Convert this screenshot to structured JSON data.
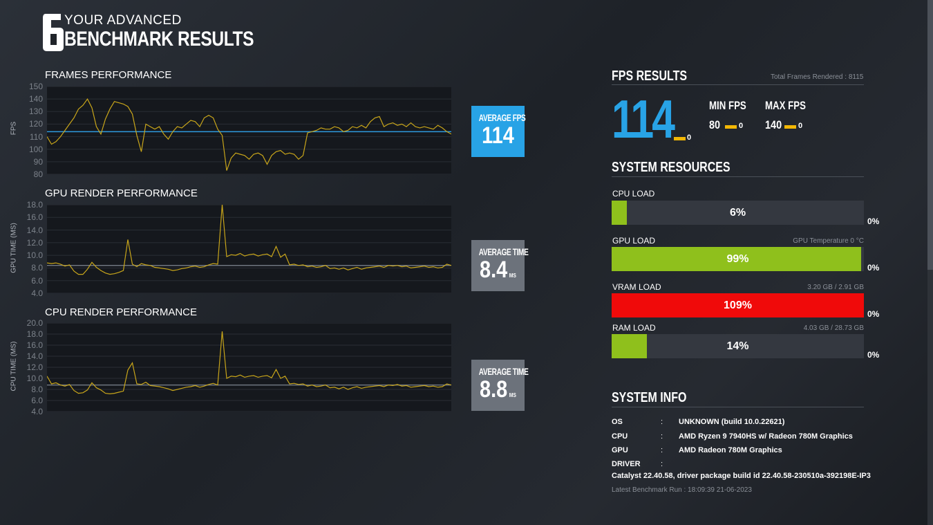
{
  "header": {
    "title_top": "YOUR ADVANCED",
    "title_bottom": "BENCHMARK RESULTS"
  },
  "charts": [
    {
      "title": "FRAMES PERFORMANCE",
      "ylabel": "FPS",
      "ticks": [
        "150",
        "140",
        "130",
        "120",
        "110",
        "100",
        "90",
        "80"
      ],
      "ylim": [
        80,
        150
      ],
      "average_label": "AVERAGE FPS",
      "average_value": "114",
      "average_unit": "",
      "average_line": 114,
      "values": [
        110,
        104,
        106,
        110,
        115,
        120,
        125,
        132,
        135,
        140,
        133,
        118,
        112,
        124,
        132,
        138,
        137,
        136,
        134,
        128,
        111,
        98,
        120,
        118,
        116,
        118,
        112,
        108,
        114,
        118,
        117,
        120,
        123,
        122,
        118,
        125,
        127,
        125,
        116,
        111,
        83,
        93,
        97,
        96,
        95,
        92,
        96,
        97,
        95,
        88,
        95,
        98,
        99,
        96,
        97,
        96,
        92,
        95,
        113,
        114,
        115,
        117,
        116,
        116,
        118,
        117,
        114,
        115,
        118,
        117,
        119,
        117,
        122,
        125,
        126,
        118,
        120,
        121,
        119,
        120,
        118,
        121,
        118,
        117,
        118,
        117,
        116,
        119,
        117,
        114,
        112
      ]
    },
    {
      "title": "GPU RENDER PERFORMANCE",
      "ylabel": "GPU TIME (MS)",
      "ticks": [
        "18.0",
        "16.0",
        "14.0",
        "12.0",
        "10.0",
        "8.0",
        "6.0",
        "4.0"
      ],
      "ylim": [
        4,
        18
      ],
      "average_label": "AVERAGE TIME",
      "average_value": "8.4",
      "average_unit": "MS",
      "average_line": 8.4,
      "values": [
        8.8,
        8.7,
        8.8,
        8.6,
        8.3,
        8.5,
        7.5,
        7.0,
        7.0,
        7.8,
        8.9,
        8.1,
        7.6,
        7.2,
        7.0,
        7.1,
        7.3,
        7.6,
        12.5,
        8.6,
        8.2,
        8.7,
        8.5,
        8.4,
        8.1,
        8.0,
        7.9,
        7.8,
        7.6,
        7.7,
        7.9,
        8.0,
        8.2,
        8.3,
        8.1,
        8.2,
        8.5,
        8.7,
        8.6,
        18.0,
        9.8,
        10.1,
        10.0,
        10.3,
        9.9,
        10.1,
        10.2,
        9.9,
        10.1,
        10.2,
        9.8,
        11.4,
        9.7,
        10.2,
        8.5,
        8.6,
        8.4,
        8.5,
        8.2,
        8.3,
        8.1,
        8.2,
        8.4,
        7.9,
        8.0,
        7.8,
        8.0,
        7.7,
        7.9,
        8.1,
        7.8,
        8.0,
        8.1,
        8.2,
        8.3,
        8.1,
        8.4,
        8.3,
        8.4,
        8.2,
        8.3,
        8.0,
        8.1,
        8.2,
        8.3,
        8.1,
        8.2,
        8.0,
        8.1,
        8.6,
        8.4
      ]
    },
    {
      "title": "CPU RENDER PERFORMANCE",
      "ylabel": "CPU TIME (MS)",
      "ticks": [
        "20.0",
        "18.0",
        "16.0",
        "14.0",
        "12.0",
        "10.0",
        "8.0",
        "6.0",
        "4.0"
      ],
      "ylim": [
        4,
        20
      ],
      "average_label": "AVERAGE TIME",
      "average_value": "8.8",
      "average_unit": "MS",
      "average_line": 8.8,
      "values": [
        10.4,
        9.0,
        9.2,
        8.8,
        8.6,
        8.9,
        7.8,
        7.3,
        7.4,
        7.9,
        9.2,
        8.3,
        7.9,
        7.3,
        7.2,
        7.3,
        7.5,
        7.7,
        11.5,
        12.8,
        9.0,
        8.9,
        9.3,
        8.7,
        8.6,
        8.5,
        8.3,
        8.1,
        7.8,
        8.0,
        8.2,
        8.4,
        8.5,
        8.7,
        8.4,
        8.6,
        8.9,
        9.1,
        8.8,
        18.5,
        10.0,
        10.4,
        10.3,
        10.6,
        10.2,
        10.4,
        10.5,
        10.2,
        10.4,
        10.5,
        10.1,
        11.6,
        10.0,
        10.4,
        9.0,
        9.1,
        8.9,
        9.0,
        8.6,
        8.8,
        8.5,
        8.6,
        8.8,
        8.3,
        8.4,
        8.1,
        8.4,
        8.0,
        8.3,
        8.5,
        8.2,
        8.4,
        8.5,
        8.6,
        8.7,
        8.5,
        8.8,
        8.7,
        8.9,
        8.6,
        8.7,
        8.4,
        8.5,
        8.6,
        8.7,
        8.5,
        8.6,
        8.4,
        8.5,
        9.0,
        8.8
      ]
    }
  ],
  "fps_results": {
    "title": "FPS RESULTS",
    "total_frames": "Total Frames Rendered : 8115",
    "avg": "114",
    "avg_delta": "0",
    "min_label": "MIN FPS",
    "min": "80",
    "min_delta": "0",
    "max_label": "MAX FPS",
    "max": "140",
    "max_delta": "0"
  },
  "system_resources": {
    "title": "SYSTEM RESOURCES",
    "items": [
      {
        "label": "CPU LOAD",
        "info": "",
        "value_text": "6%",
        "fraction": 0.06,
        "color": "#8fc01c",
        "delta": "0%"
      },
      {
        "label": "GPU LOAD",
        "info": "GPU Temperature 0 °C",
        "value_text": "99%",
        "fraction": 0.99,
        "color": "#8fc01c",
        "delta": "0%"
      },
      {
        "label": "VRAM LOAD",
        "info": "3.20 GB / 2.91 GB",
        "value_text": "109%",
        "fraction": 1.0,
        "color": "#f00a0a",
        "delta": "0%"
      },
      {
        "label": "RAM LOAD",
        "info": "4.03 GB / 28.73 GB",
        "value_text": "14%",
        "fraction": 0.14,
        "color": "#8fc01c",
        "delta": "0%"
      }
    ]
  },
  "system_info": {
    "title": "SYSTEM INFO",
    "rows": [
      {
        "key": "OS",
        "colon": ":",
        "value": "UNKNOWN (build 10.0.22621)"
      },
      {
        "key": "CPU",
        "colon": ":",
        "value": "AMD Ryzen 9 7940HS w/ Radeon 780M Graphics"
      },
      {
        "key": "GPU",
        "colon": ":",
        "value": "AMD Radeon 780M Graphics"
      },
      {
        "key": "DRIVER",
        "colon": ":",
        "value": ""
      }
    ],
    "driver_value": "Catalyst 22.40.58, driver package build id 22.40.58-230510a-392198E-IP3",
    "latest_run": "Latest Benchmark Run : 18:09:39 21-06-2023"
  },
  "colors": {
    "fps_accent": "#28a3e6",
    "chart_line": "#c9a61a",
    "avg_line_fps": "#2e9be0",
    "avg_line_time": "#6f7680",
    "delta_marker": "#f2b705",
    "time_box": "#6c727b"
  }
}
